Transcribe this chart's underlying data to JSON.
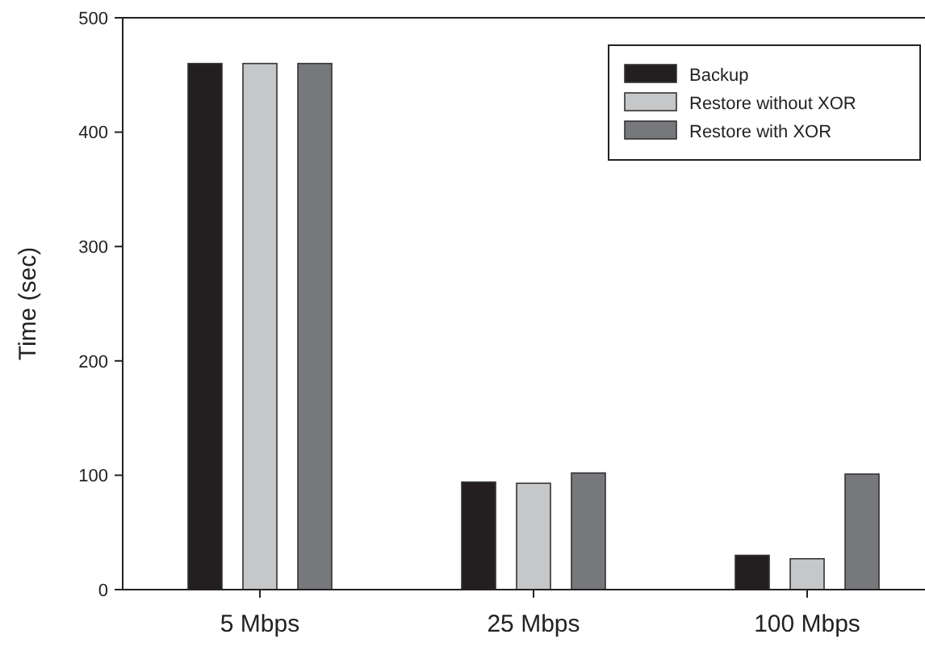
{
  "chart_data": {
    "type": "bar",
    "ylabel": "Time (sec)",
    "categories": [
      "5 Mbps",
      "25 Mbps",
      "100 Mbps"
    ],
    "series": [
      {
        "name": "Backup",
        "color": "#231f20",
        "values": [
          460,
          94,
          30
        ]
      },
      {
        "name": "Restore without XOR",
        "color": "#c6c7c9",
        "values": [
          460,
          93,
          27
        ]
      },
      {
        "name": "Restore with XOR",
        "color": "#77787b",
        "values": [
          460,
          102,
          101
        ]
      }
    ],
    "ylim": [
      0,
      500
    ],
    "yticks": [
      0,
      100,
      200,
      300,
      400,
      500
    ],
    "legend": "top right"
  }
}
